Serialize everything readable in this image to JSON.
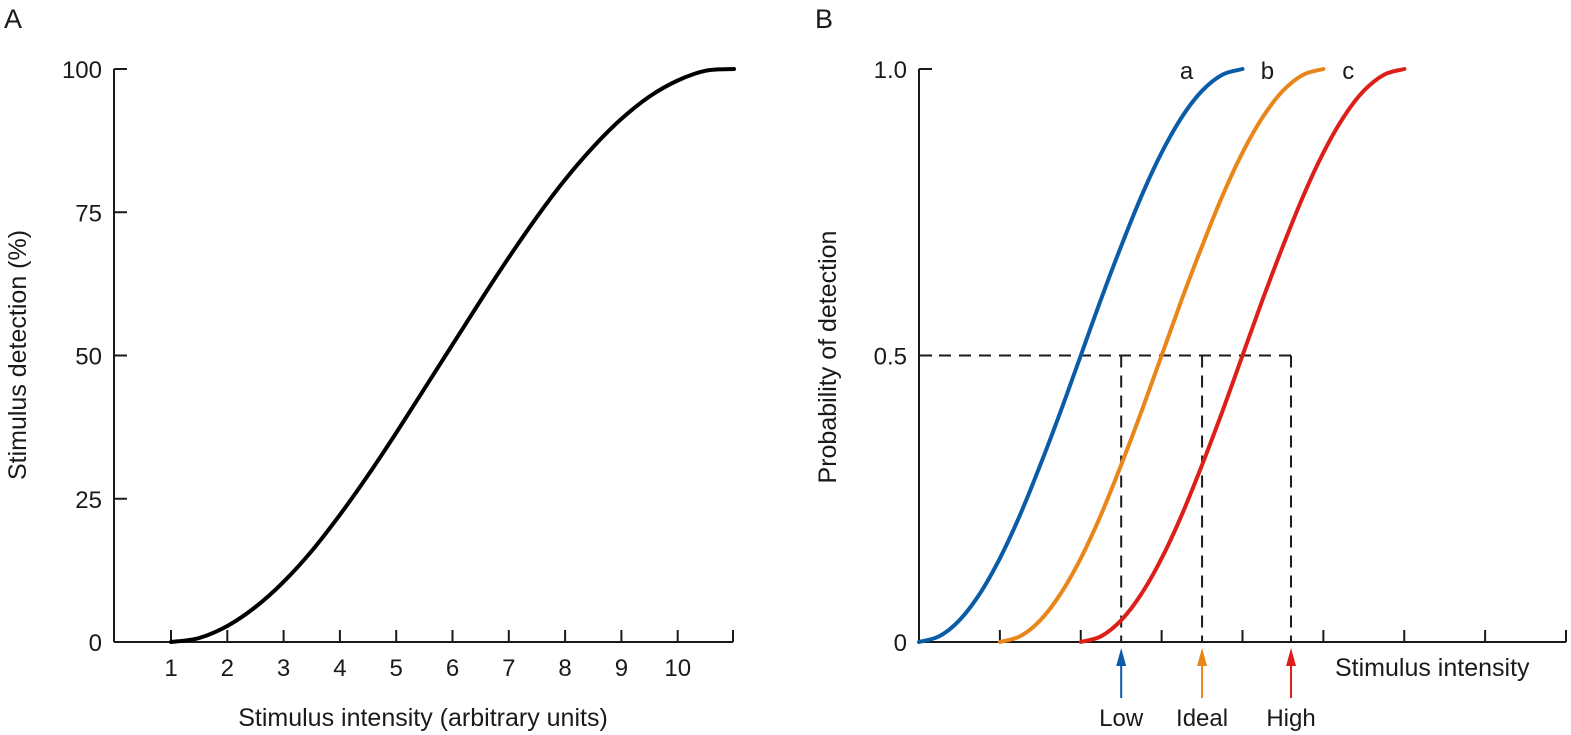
{
  "panels": {
    "a_label": "A",
    "b_label": "B"
  },
  "chart_data": [
    {
      "type": "line",
      "panel": "A",
      "xlabel": "Stimulus intensity (arbitrary units)",
      "ylabel": "Stimulus detection (%)",
      "x_ticks": [
        "1",
        "2",
        "3",
        "4",
        "5",
        "6",
        "7",
        "8",
        "9",
        "10"
      ],
      "y_ticks": [
        "0",
        "25",
        "50",
        "75",
        "100"
      ],
      "xlim": [
        0,
        11
      ],
      "ylim": [
        0,
        100
      ],
      "series": [
        {
          "color": "#000000",
          "x": [
            1,
            1.5,
            2,
            2.5,
            3,
            3.5,
            4,
            4.5,
            5,
            5.5,
            6,
            6.5,
            7,
            7.5,
            8,
            8.5,
            9,
            9.5,
            10,
            10.5,
            11
          ],
          "y": [
            0,
            0.7,
            2.8,
            6.1,
            10.5,
            15.9,
            22.2,
            29.1,
            36.5,
            44.2,
            51.9,
            59.6,
            67.1,
            74.2,
            80.7,
            86.4,
            91.3,
            95.2,
            98.0,
            99.7,
            100
          ]
        }
      ]
    },
    {
      "type": "line",
      "panel": "B",
      "xlabel": "Stimulus intensity",
      "ylabel": "Probability of detection",
      "y_ticks": [
        "0",
        "0.5",
        "1.0"
      ],
      "ylim": [
        0,
        1
      ],
      "xlim": [
        0,
        8
      ],
      "threshold_level": 0.5,
      "series": [
        {
          "name": "a",
          "color": "#0b5ca8",
          "x": [
            0,
            0.25,
            0.5,
            0.75,
            1,
            1.25,
            1.5,
            1.75,
            2,
            2.25,
            2.5,
            2.75,
            3,
            3.25,
            3.5,
            3.75,
            4
          ],
          "y": [
            0,
            0.01,
            0.038,
            0.084,
            0.146,
            0.222,
            0.309,
            0.402,
            0.5,
            0.598,
            0.691,
            0.778,
            0.854,
            0.916,
            0.962,
            0.99,
            1
          ]
        },
        {
          "name": "b",
          "color": "#e8861a",
          "x": [
            1,
            1.25,
            1.5,
            1.75,
            2,
            2.25,
            2.5,
            2.75,
            3,
            3.25,
            3.5,
            3.75,
            4,
            4.25,
            4.5,
            4.75,
            5
          ],
          "y": [
            0,
            0.01,
            0.038,
            0.084,
            0.146,
            0.222,
            0.309,
            0.402,
            0.5,
            0.598,
            0.691,
            0.778,
            0.854,
            0.916,
            0.962,
            0.99,
            1
          ]
        },
        {
          "name": "c",
          "color": "#dd1f1a",
          "x": [
            2,
            2.25,
            2.5,
            2.75,
            3,
            3.25,
            3.5,
            3.75,
            4,
            4.25,
            4.5,
            4.75,
            5,
            5.25,
            5.5,
            5.75,
            6
          ],
          "y": [
            0,
            0.01,
            0.038,
            0.084,
            0.146,
            0.222,
            0.309,
            0.402,
            0.5,
            0.598,
            0.691,
            0.778,
            0.854,
            0.916,
            0.962,
            0.99,
            1
          ]
        }
      ],
      "thresholds": [
        {
          "label": "Low",
          "x": 2.5,
          "color": "#0b5ca8"
        },
        {
          "label": "Ideal",
          "x": 3.5,
          "color": "#e8861a"
        },
        {
          "label": "High",
          "x": 4.6,
          "color": "#dd1f1a"
        }
      ]
    }
  ]
}
